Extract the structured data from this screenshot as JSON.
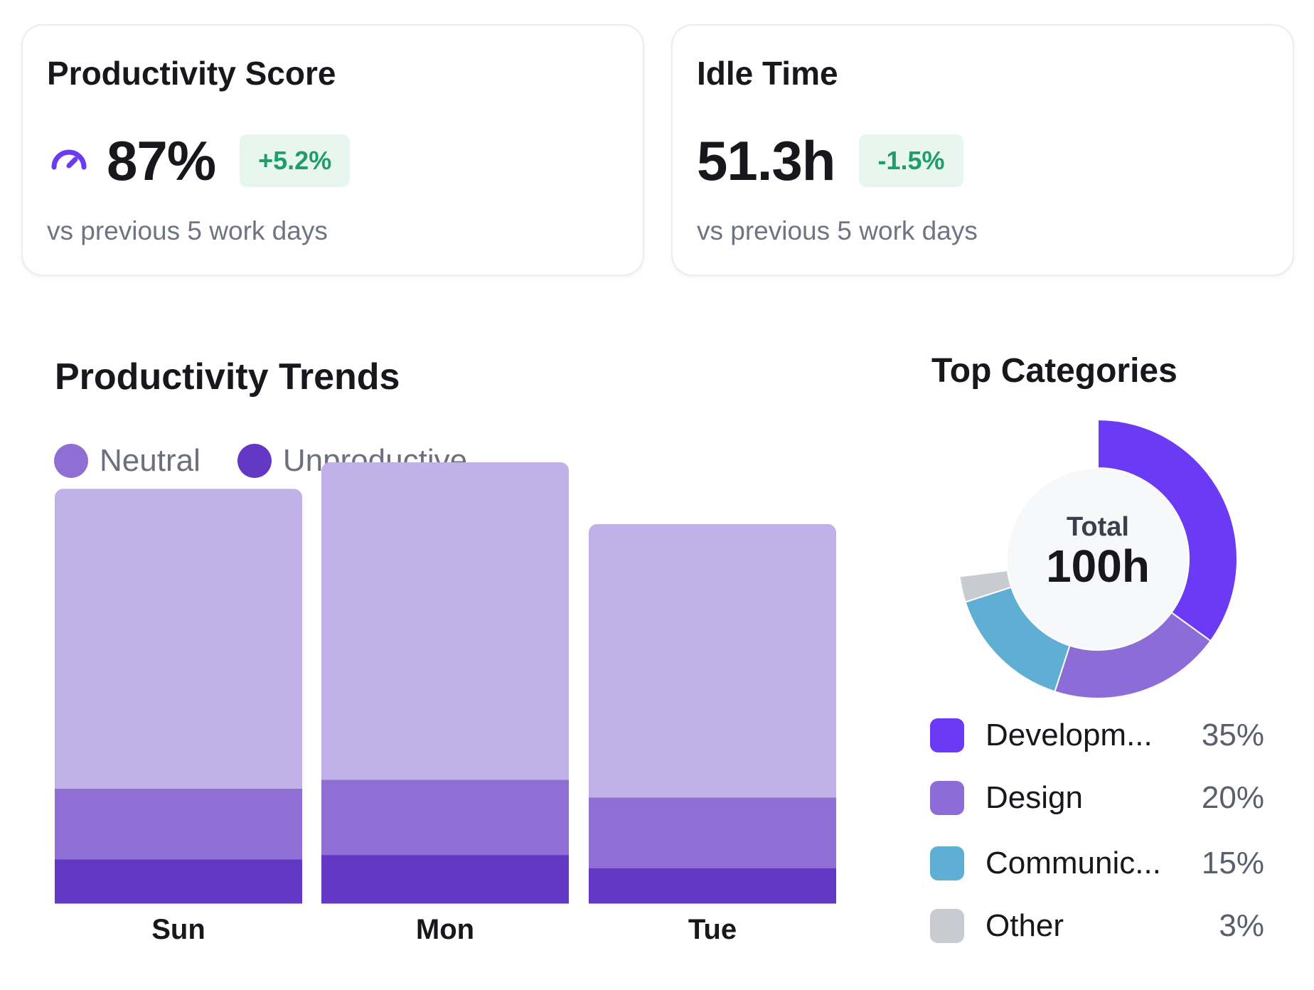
{
  "productivity_card": {
    "title": "Productivity Score",
    "value": "87%",
    "delta": "+5.2%",
    "subtext": "vs previous 5 work days",
    "icon": "gauge-icon"
  },
  "idle_card": {
    "title": "Idle Time",
    "value": "51.3h",
    "delta": "-1.5%",
    "subtext": "vs previous 5 work days"
  },
  "trends": {
    "title": "Productivity Trends",
    "legend": [
      {
        "label": "Neutral",
        "color": "#8f6fd4"
      },
      {
        "label": "Unproductive",
        "color": "#6338c4"
      }
    ]
  },
  "categories": {
    "title": "Top Categories",
    "total_label": "Total",
    "total_value": "100h",
    "items": [
      {
        "name": "Developm...",
        "percent": "35%",
        "value": 35,
        "color": "#6a3af5"
      },
      {
        "name": "Design",
        "percent": "20%",
        "value": 20,
        "color": "#8c6cd6"
      },
      {
        "name": "Communic...",
        "percent": "15%",
        "value": 15,
        "color": "#5faed4"
      },
      {
        "name": "Other",
        "percent": "3%",
        "value": 3,
        "color": "#c8cbd1"
      }
    ]
  },
  "chart_data": {
    "type": "bar",
    "stacked": true,
    "categories": [
      "Sun",
      "Mon",
      "Tue"
    ],
    "series": [
      {
        "name": "Unproductive",
        "values": [
          1.0,
          1.1,
          0.8
        ],
        "color": "#6338c4"
      },
      {
        "name": "Neutral",
        "values": [
          1.6,
          1.7,
          1.6
        ],
        "color": "#8f6fd4"
      },
      {
        "values": [
          6.8,
          7.2,
          6.2
        ],
        "color": "#c1b1e8"
      }
    ],
    "ylim": [
      0,
      10
    ],
    "grid": false,
    "legend": "top-left"
  }
}
